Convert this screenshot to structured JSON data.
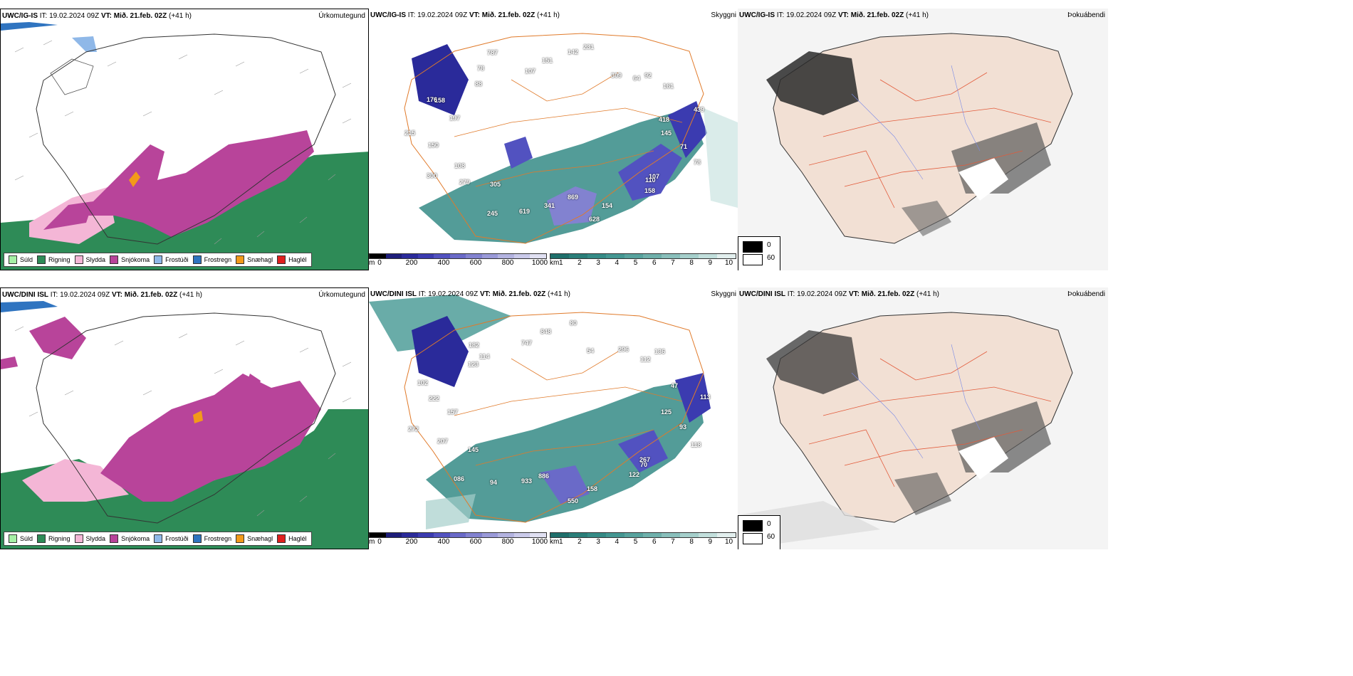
{
  "rows": [
    {
      "model": "UWC/IG-IS",
      "it_label": "IT:",
      "it_value": "19.02.2024 09Z",
      "vt_label": "VT:",
      "vt_value": "Mið. 21.feb. 02Z",
      "lead": "(+41 h)",
      "precip_title": "Úrkomutegund",
      "snow_labels": [
        "145",
        "71",
        "78",
        "110",
        "107",
        "158",
        "154",
        "628",
        "869",
        "341",
        "619",
        "245",
        "305",
        "279",
        "300",
        "108",
        "150",
        "215",
        "197",
        "158",
        "176",
        "88",
        "78",
        "787",
        "107",
        "151",
        "142",
        "231",
        "309",
        "92",
        "64",
        "161",
        "439",
        "418"
      ],
      "skyggni_title": "Skyggni",
      "fog_title": "Þokuábendi"
    },
    {
      "model": "UWC/DINI ISL",
      "it_label": "IT:",
      "it_value": "19.02.2024 09Z",
      "vt_label": "VT:",
      "vt_value": "Mið. 21.feb. 02Z",
      "lead": "(+41 h)",
      "precip_title": "Úrkomutegund",
      "snow_labels": [
        "125",
        "93",
        "118",
        "70",
        "267",
        "122",
        "158",
        "550",
        "886",
        "933",
        "94",
        "086",
        "145",
        "207",
        "272",
        "157",
        "222",
        "102",
        "123",
        "182",
        "114",
        "747",
        "848",
        "80",
        "54",
        "296",
        "136",
        "112",
        "47",
        "113"
      ],
      "skyggni_title": "Skyggni",
      "fog_title": "Þokuábendi"
    }
  ],
  "precip_legend": [
    {
      "label": "Súld",
      "color": "#a6f0a6"
    },
    {
      "label": "Rigning",
      "color": "#2e8b57"
    },
    {
      "label": "Slydda",
      "color": "#f4b6d6"
    },
    {
      "label": "Snjókoma",
      "color": "#b8449a"
    },
    {
      "label": "Frostúði",
      "color": "#8fb8e8"
    },
    {
      "label": "Frostregn",
      "color": "#2f74c0"
    },
    {
      "label": "Snæhagl",
      "color": "#f29a1a"
    },
    {
      "label": "Haglél",
      "color": "#e0201e"
    }
  ],
  "snow_scale": {
    "unit": "m",
    "ticks": [
      "0",
      "200",
      "400",
      "600",
      "800",
      "1000"
    ],
    "colors": [
      "#000000",
      "#1e1e7a",
      "#2a2a9a",
      "#3b3bb0",
      "#5252c0",
      "#6a6ac8",
      "#8282d0",
      "#9a9ad8",
      "#b3b3e0",
      "#cacaea",
      "#e0e0f2"
    ]
  },
  "vis_scale": {
    "unit": "km",
    "ticks": [
      "1",
      "2",
      "3",
      "4",
      "5",
      "6",
      "7",
      "8",
      "9",
      "10"
    ],
    "colors": [
      "#1f6f6b",
      "#2a7e79",
      "#358b86",
      "#449792",
      "#58a39e",
      "#6fb0ab",
      "#89bfbb",
      "#a5cfcb",
      "#c2dfdc",
      "#e2efee"
    ]
  },
  "fog_key": {
    "items": [
      {
        "label": "0",
        "color": "#000000"
      },
      {
        "label": "60",
        "color": "#ffffff"
      }
    ]
  }
}
